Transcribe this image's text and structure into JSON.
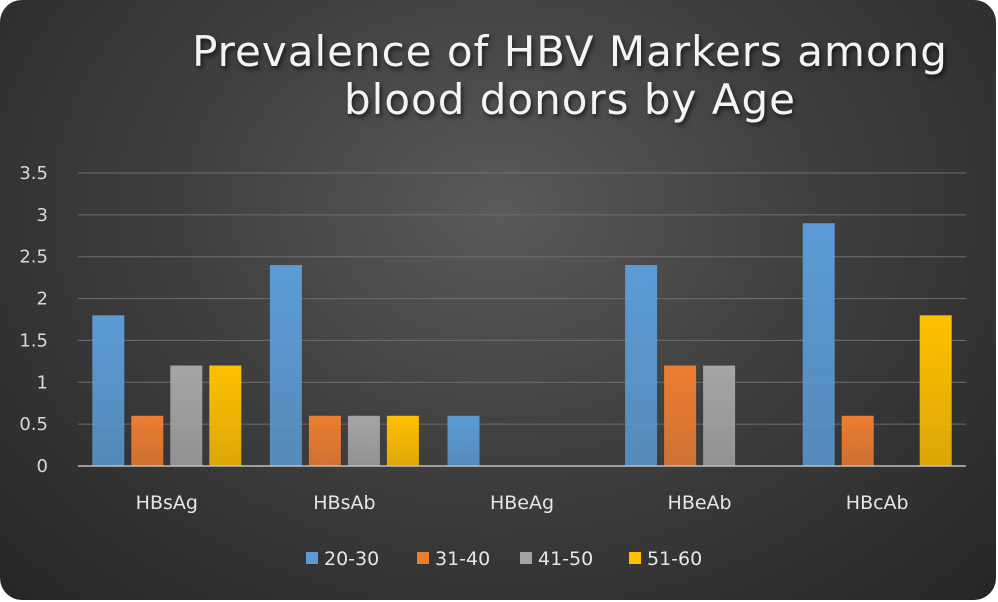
{
  "chart_data": {
    "type": "bar",
    "title": "Prevalence of HBV Markers among\nblood donors by Age",
    "categories": [
      "HBsAg",
      "HBsAb",
      "HBeAg",
      "HBeAb",
      "HBcAb"
    ],
    "series": [
      {
        "name": "20-30",
        "color": "#5b9bd5",
        "values": [
          1.8,
          2.4,
          0.6,
          2.4,
          2.9
        ]
      },
      {
        "name": "31-40",
        "color": "#ed7d31",
        "values": [
          0.6,
          0.6,
          0,
          1.2,
          0.6
        ]
      },
      {
        "name": "41-50",
        "color": "#a5a5a5",
        "values": [
          1.2,
          0.6,
          0,
          1.2,
          0
        ]
      },
      {
        "name": "51-60",
        "color": "#ffc000",
        "values": [
          1.2,
          0.6,
          0,
          0,
          1.8
        ]
      }
    ],
    "ylim": [
      0,
      3.5
    ],
    "yticks": [
      "0",
      "0.5",
      "1",
      "1.5",
      "2",
      "2.5",
      "3",
      "3.5"
    ],
    "grid": true,
    "legend_position": "bottom"
  }
}
